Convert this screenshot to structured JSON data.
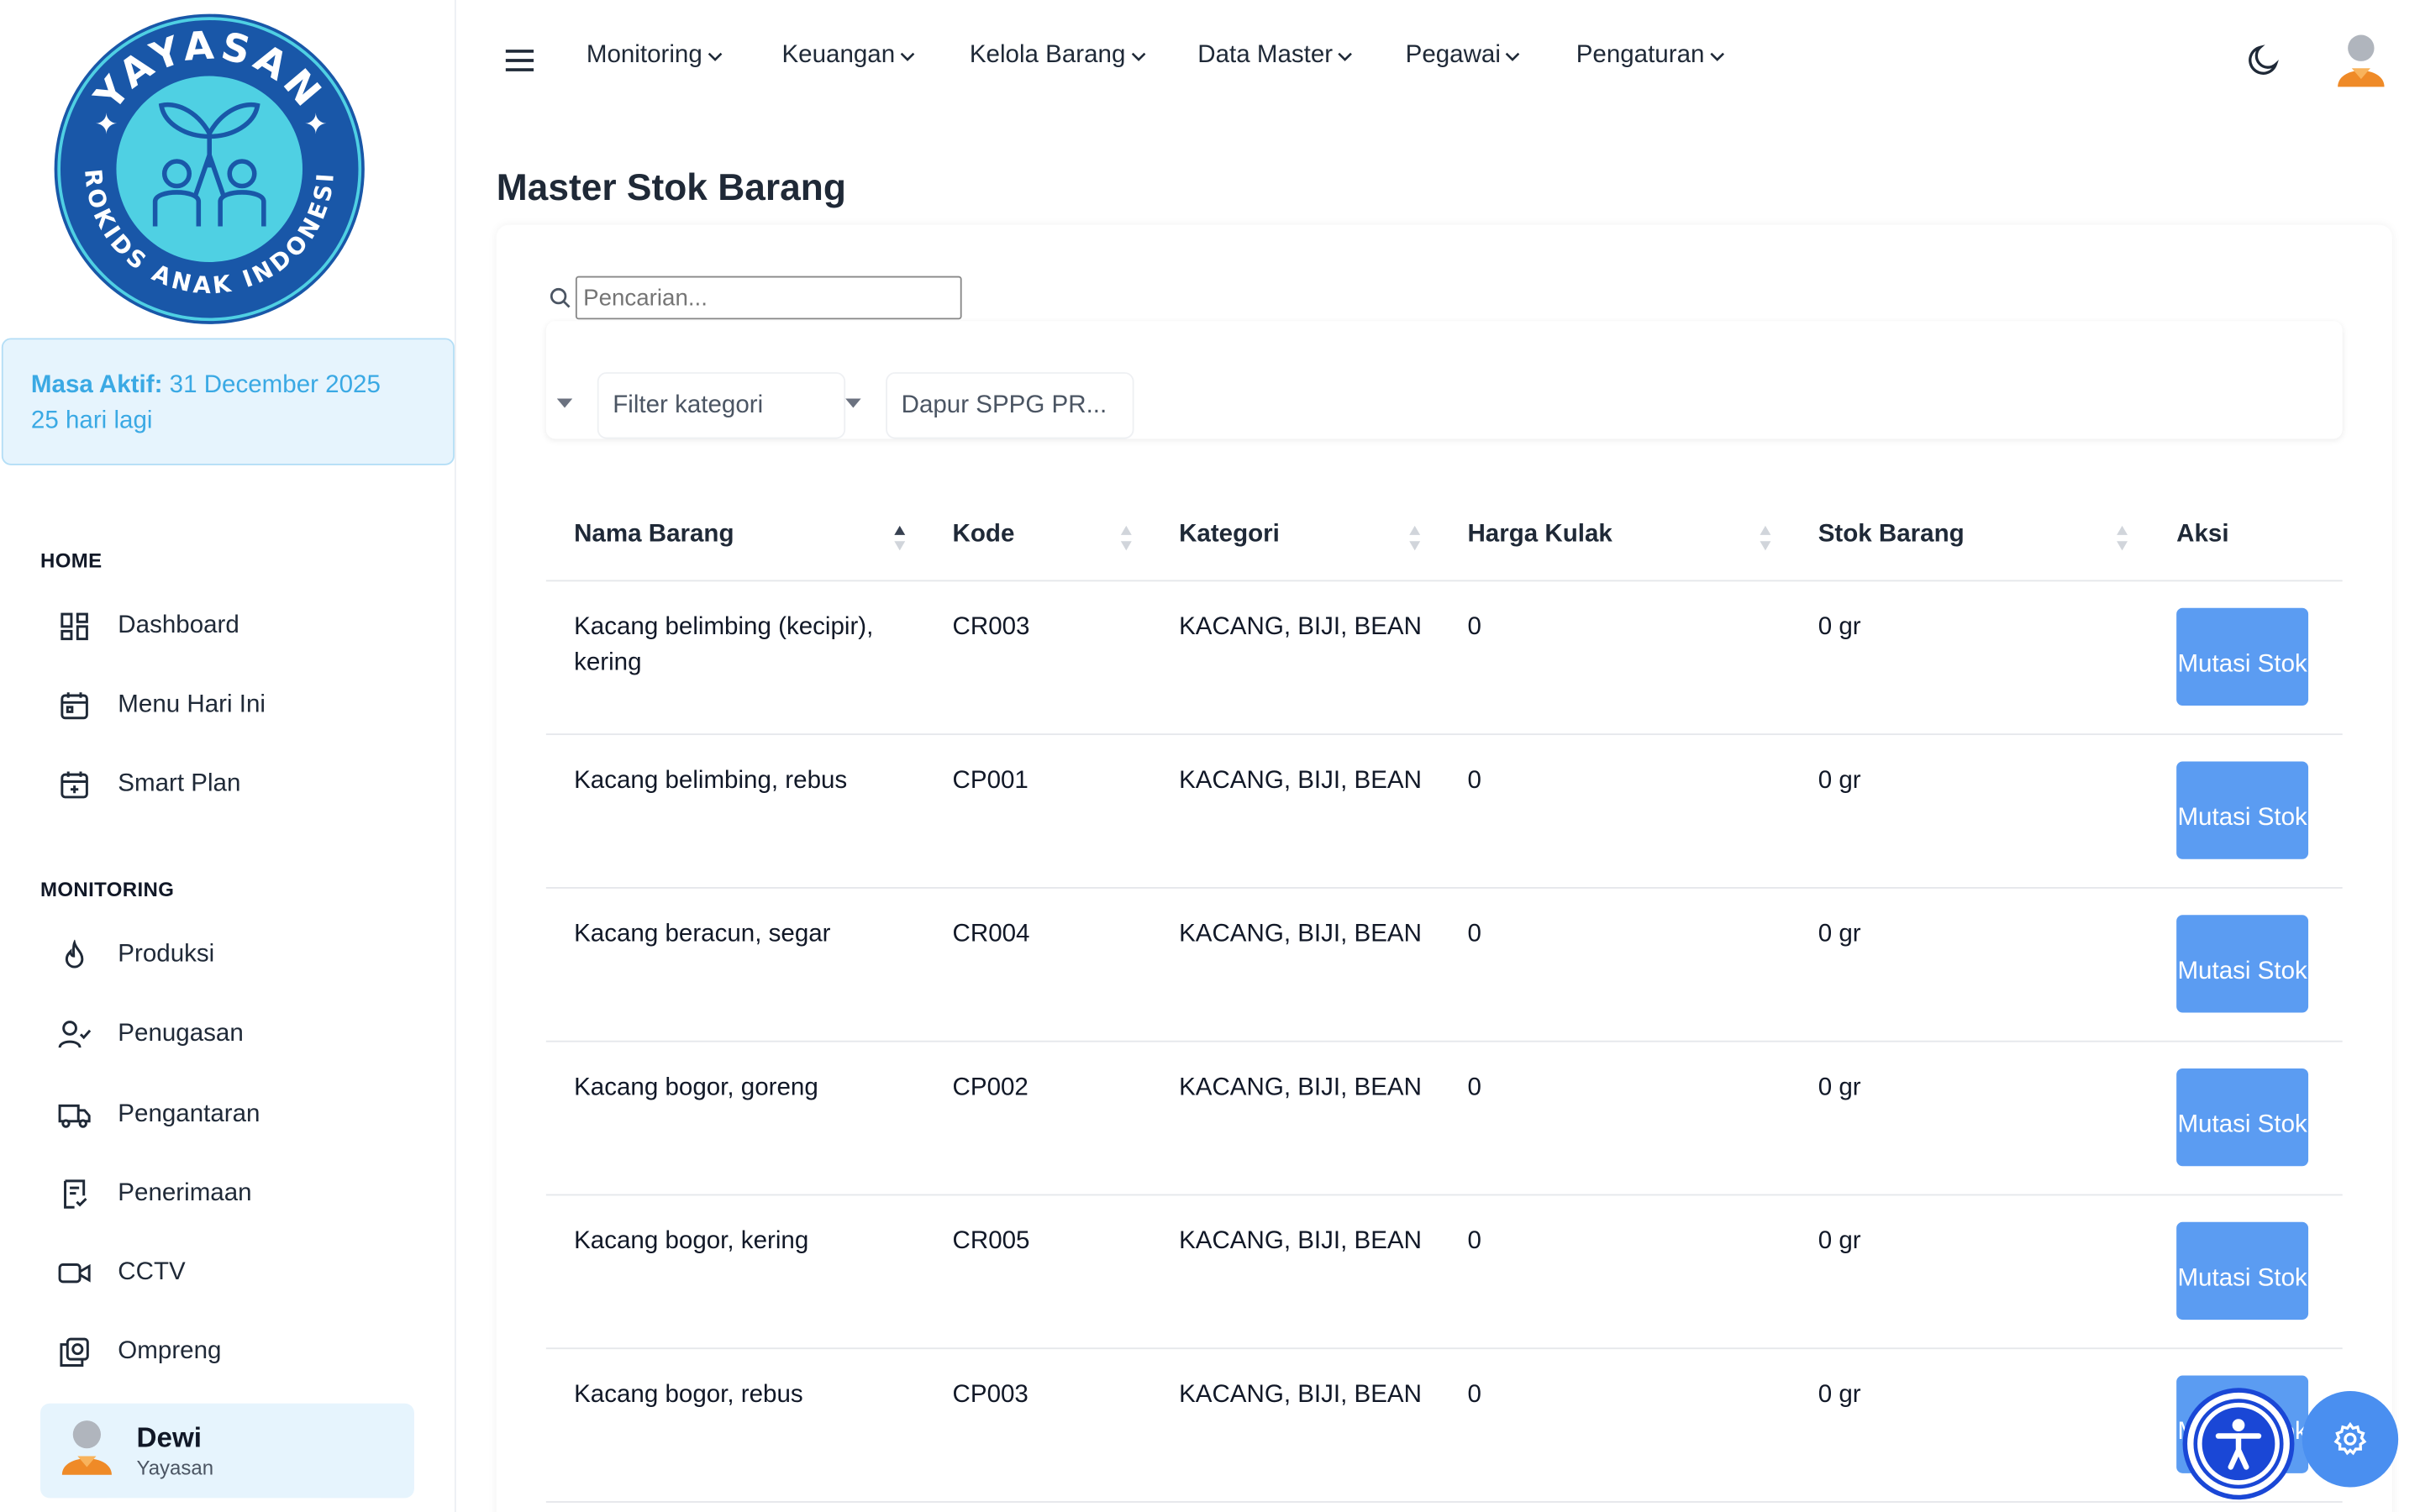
{
  "brand": {
    "logo_top_text": "YAYASAN",
    "logo_bottom_text": "PROKIDS ANAK INDONESIA",
    "colors": {
      "ring": "#1957a8",
      "inner": "#4fd0e3",
      "accent": "#3aa9e4"
    }
  },
  "subscription": {
    "label": "Masa Aktif:",
    "date": "31 December 2025",
    "remaining": "25 hari lagi"
  },
  "sidebar": {
    "sections": [
      {
        "title": "HOME",
        "items": [
          {
            "label": "Dashboard",
            "icon": "dashboard-grid-icon"
          },
          {
            "label": "Menu Hari Ini",
            "icon": "calendar-icon"
          },
          {
            "label": "Smart Plan",
            "icon": "calendar-plus-icon"
          }
        ]
      },
      {
        "title": "MONITORING",
        "items": [
          {
            "label": "Produksi",
            "icon": "flame-icon"
          },
          {
            "label": "Penugasan",
            "icon": "user-check-icon"
          },
          {
            "label": "Pengantaran",
            "icon": "truck-icon"
          },
          {
            "label": "Penerimaan",
            "icon": "receipt-icon"
          },
          {
            "label": "CCTV",
            "icon": "video-camera-icon"
          },
          {
            "label": "Ompreng",
            "icon": "tray-icon"
          }
        ]
      }
    ],
    "user": {
      "name": "Dewi",
      "role": "Yayasan"
    }
  },
  "topbar": {
    "menus": [
      "Monitoring",
      "Keuangan",
      "Kelola Barang",
      "Data Master",
      "Pegawai",
      "Pengaturan"
    ]
  },
  "page": {
    "title": "Master Stok Barang",
    "search": {
      "placeholder": "Pencarian...",
      "value": ""
    },
    "filters": {
      "category": "Filter kategori",
      "location": "Dapur SPPG PR..."
    },
    "table": {
      "columns": [
        "Nama Barang",
        "Kode",
        "Kategori",
        "Harga Kulak",
        "Stok Barang",
        "Aksi"
      ],
      "rows": [
        {
          "nama": "Kacang belimbing (kecipir), kering",
          "kode": "CR003",
          "kategori": "KACANG, BIJI, BEAN",
          "harga": "0",
          "stok": "0 gr",
          "aksi": "Mutasi Stok"
        },
        {
          "nama": "Kacang belimbing, rebus",
          "kode": "CP001",
          "kategori": "KACANG, BIJI, BEAN",
          "harga": "0",
          "stok": "0 gr",
          "aksi": "Mutasi Stok"
        },
        {
          "nama": "Kacang beracun, segar",
          "kode": "CR004",
          "kategori": "KACANG, BIJI, BEAN",
          "harga": "0",
          "stok": "0 gr",
          "aksi": "Mutasi Stok"
        },
        {
          "nama": "Kacang bogor, goreng",
          "kode": "CP002",
          "kategori": "KACANG, BIJI, BEAN",
          "harga": "0",
          "stok": "0 gr",
          "aksi": "Mutasi Stok"
        },
        {
          "nama": "Kacang bogor, kering",
          "kode": "CR005",
          "kategori": "KACANG, BIJI, BEAN",
          "harga": "0",
          "stok": "0 gr",
          "aksi": "Mutasi Stok"
        },
        {
          "nama": "Kacang bogor, rebus",
          "kode": "CP003",
          "kategori": "KACANG, BIJI, BEAN",
          "harga": "0",
          "stok": "0 gr",
          "aksi": "Mutasi Stok"
        }
      ]
    }
  }
}
